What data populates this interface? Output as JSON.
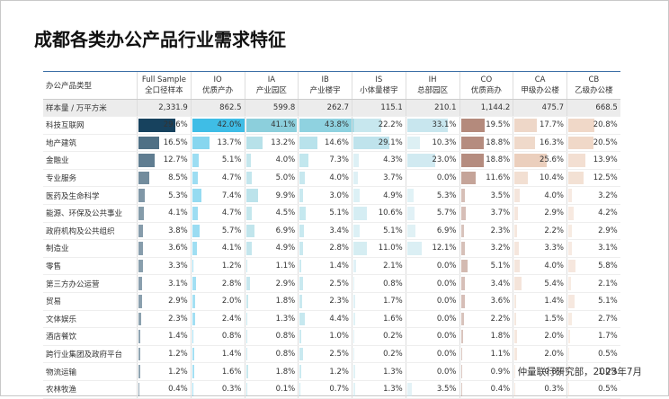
{
  "title": "成都各类办公产品行业需求特征",
  "table": {
    "corner": "办公产品类型",
    "columns": [
      {
        "code": "Full Sample",
        "name": "全口径样本"
      },
      {
        "code": "IO",
        "name": "优质产办"
      },
      {
        "code": "IA",
        "name": "产业园区"
      },
      {
        "code": "IB",
        "name": "产业楼宇"
      },
      {
        "code": "IS",
        "name": "小体量楼宇"
      },
      {
        "code": "IH",
        "name": "总部园区"
      },
      {
        "code": "CO",
        "name": "优质商办"
      },
      {
        "code": "CA",
        "name": "甲级办公楼"
      },
      {
        "code": "CB",
        "name": "乙级办公楼"
      }
    ],
    "sample": {
      "name": "样本量 / 万平方米",
      "cells": [
        "2,331.9",
        "862.5",
        "599.8",
        "262.7",
        "115.1",
        "210.1",
        "1,144.2",
        "475.7",
        "668.5"
      ]
    },
    "rows": [
      {
        "name": "科技互联网",
        "cells": [
          "29.6%",
          "42.0%",
          "41.1%",
          "43.8%",
          "22.2%",
          "33.1%",
          "19.5%",
          "17.7%",
          "20.8%"
        ]
      },
      {
        "name": "地产建筑",
        "cells": [
          "16.5%",
          "13.7%",
          "13.2%",
          "14.6%",
          "29.1%",
          "10.3%",
          "18.8%",
          "16.3%",
          "20.5%"
        ]
      },
      {
        "name": "金融业",
        "cells": [
          "12.7%",
          "5.1%",
          "4.0%",
          "7.3%",
          "4.3%",
          "23.0%",
          "18.8%",
          "25.6%",
          "13.9%"
        ]
      },
      {
        "name": "专业服务",
        "cells": [
          "8.5%",
          "4.7%",
          "5.0%",
          "4.0%",
          "3.7%",
          "0.0%",
          "11.6%",
          "10.4%",
          "12.5%"
        ]
      },
      {
        "name": "医药及生命科学",
        "cells": [
          "5.3%",
          "7.4%",
          "9.9%",
          "3.0%",
          "4.9%",
          "5.3%",
          "3.5%",
          "4.0%",
          "3.2%"
        ]
      },
      {
        "name": "能源、环保及公共事业",
        "cells": [
          "4.1%",
          "4.7%",
          "4.5%",
          "5.1%",
          "10.6%",
          "5.7%",
          "3.7%",
          "2.9%",
          "4.2%"
        ]
      },
      {
        "name": "政府机构及公共组织",
        "cells": [
          "3.8%",
          "5.7%",
          "6.9%",
          "3.4%",
          "5.1%",
          "6.9%",
          "2.3%",
          "2.2%",
          "2.9%"
        ]
      },
      {
        "name": "制造业",
        "cells": [
          "3.6%",
          "4.1%",
          "4.9%",
          "2.8%",
          "11.0%",
          "12.1%",
          "3.2%",
          "3.3%",
          "3.1%"
        ]
      },
      {
        "name": "零售",
        "cells": [
          "3.3%",
          "1.2%",
          "1.1%",
          "1.4%",
          "2.1%",
          "0.0%",
          "5.1%",
          "4.0%",
          "5.8%"
        ]
      },
      {
        "name": "第三方办公运营",
        "cells": [
          "3.1%",
          "2.8%",
          "2.9%",
          "2.5%",
          "0.8%",
          "0.0%",
          "3.4%",
          "5.4%",
          "2.1%"
        ]
      },
      {
        "name": "贸易",
        "cells": [
          "2.9%",
          "2.0%",
          "1.8%",
          "2.3%",
          "1.7%",
          "0.0%",
          "3.6%",
          "1.4%",
          "5.1%"
        ]
      },
      {
        "name": "文体娱乐",
        "cells": [
          "2.3%",
          "2.4%",
          "1.3%",
          "4.4%",
          "1.6%",
          "0.0%",
          "2.2%",
          "1.5%",
          "2.7%"
        ]
      },
      {
        "name": "酒店餐饮",
        "cells": [
          "1.4%",
          "0.8%",
          "0.8%",
          "1.0%",
          "0.2%",
          "0.0%",
          "1.8%",
          "2.0%",
          "1.7%"
        ]
      },
      {
        "name": "跨行业集团及政府平台",
        "cells": [
          "1.2%",
          "1.4%",
          "0.8%",
          "2.5%",
          "0.2%",
          "0.0%",
          "1.1%",
          "2.0%",
          "0.5%"
        ]
      },
      {
        "name": "物流运输",
        "cells": [
          "1.2%",
          "1.6%",
          "1.8%",
          "1.2%",
          "1.3%",
          "0.0%",
          "0.9%",
          "0.8%",
          "1.0%"
        ]
      },
      {
        "name": "农林牧渔",
        "cells": [
          "0.4%",
          "0.3%",
          "0.1%",
          "0.7%",
          "1.3%",
          "3.5%",
          "0.4%",
          "0.3%",
          "0.5%"
        ]
      }
    ],
    "bar_colors": [
      "#17425e",
      "#3fbde6",
      "#8ccfdc",
      "#8fd2e0",
      "#bfe3ec",
      "#c8e6ee",
      "#b48a7c",
      "#ebcfbd",
      "#f0d8c8"
    ]
  },
  "footer": "仲量联行研究部，2023年7月"
}
